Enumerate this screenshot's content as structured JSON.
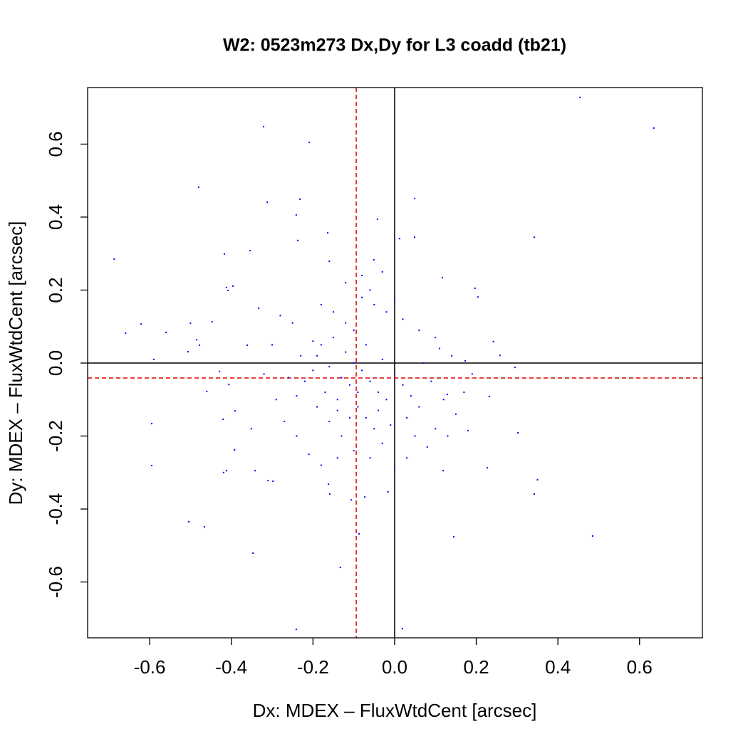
{
  "chart_data": {
    "type": "scatter",
    "title": "W2: 0523m273 Dx,Dy for L3 coadd (tb21)",
    "x_label": "Dx: MDEX – FluxWtdCent [arcsec]",
    "y_label": "Dy: MDEX – FluxWtdCent [arcsec]",
    "xlim": [
      -0.752,
      0.754
    ],
    "ylim": [
      -0.753,
      0.755
    ],
    "xticks": [
      -0.6,
      -0.4,
      -0.2,
      {
        "value": 0,
        "label": "0.0"
      },
      0.2,
      0.4,
      0.6
    ],
    "yticks": [
      -0.6,
      -0.4,
      -0.2,
      {
        "value": 0,
        "label": "0.0"
      },
      0.2,
      0.4,
      0.6
    ],
    "reference_lines": [
      {
        "axis": "x",
        "value": 0,
        "color": "#000000",
        "dashed": false
      },
      {
        "axis": "y",
        "value": 0,
        "color": "#000000",
        "dashed": false
      },
      {
        "axis": "x",
        "value": -0.094,
        "color": "#e00000",
        "dashed": true
      },
      {
        "axis": "y",
        "value": -0.041,
        "color": "#e00000",
        "dashed": true
      }
    ],
    "series": [
      {
        "color": "#0000ff",
        "x": [
          0.454,
          0.635,
          -0.321,
          -0.209,
          -0.48,
          -0.312,
          -0.232,
          0.049,
          -0.241,
          -0.042,
          -0.687,
          -0.354,
          -0.417,
          -0.164,
          -0.237,
          0.012,
          0.049,
          0.342,
          -0.16,
          -0.051,
          -0.412,
          -0.396,
          -0.408,
          0.117,
          0.197,
          0.204,
          -0.621,
          -0.659,
          -0.56,
          -0.5,
          -0.447,
          -0.485,
          -0.478,
          -0.506,
          -0.59,
          -0.361,
          -0.333,
          0.242,
          0.258,
          0.295,
          0.173,
          -0.429,
          -0.406,
          -0.46,
          -0.391,
          -0.42,
          -0.595,
          -0.351,
          -0.392,
          -0.595,
          -0.412,
          -0.419,
          -0.342,
          -0.31,
          -0.298,
          -0.466,
          -0.504,
          -0.347,
          -0.162,
          -0.159,
          -0.106,
          -0.073,
          -0.016,
          -0.087,
          0.145,
          0.342,
          0.35,
          0.485,
          0.227,
          0.302,
          0.18,
          0.119,
          -0.133,
          -0.241,
          0.019,
          0.232,
          0.129,
          -0.18,
          -0.15,
          -0.12,
          -0.1,
          -0.08,
          -0.06,
          -0.04,
          -0.02,
          -0.2,
          -0.22,
          -0.17,
          -0.14,
          -0.11,
          -0.09,
          -0.07,
          -0.05,
          -0.13,
          -0.16,
          -0.19,
          -0.24,
          -0.26,
          -0.23,
          -0.2,
          -0.03,
          0.0,
          0.02,
          0.04,
          0.06,
          0.03,
          0.05,
          0.08,
          0.1,
          0.12,
          0.09,
          0.07,
          0.1,
          0.06,
          0.02,
          -0.02,
          -0.05,
          -0.08,
          -0.12,
          -0.15,
          -0.18,
          -0.25,
          -0.28,
          -0.3,
          -0.32,
          -0.29,
          -0.27,
          -0.24,
          -0.21,
          -0.18,
          -0.14,
          -0.1,
          -0.06,
          -0.03,
          0.0,
          0.03,
          0.13,
          0.15,
          0.17,
          0.19,
          0.14,
          0.11,
          -0.04,
          -0.09,
          -0.11,
          -0.13,
          -0.16,
          -0.07,
          -0.1,
          -0.14,
          -0.01,
          -0.19,
          -0.08,
          -0.06,
          -0.12,
          -0.03,
          0.0
        ],
        "y": [
          0.728,
          0.644,
          0.648,
          0.605,
          0.482,
          0.441,
          0.449,
          0.451,
          0.406,
          0.394,
          0.285,
          0.308,
          0.299,
          0.357,
          0.336,
          0.341,
          0.345,
          0.345,
          0.279,
          0.283,
          0.207,
          0.211,
          0.199,
          0.234,
          0.205,
          0.181,
          0.107,
          0.082,
          0.084,
          0.109,
          0.113,
          0.064,
          0.049,
          0.031,
          0.01,
          0.049,
          0.15,
          0.059,
          0.021,
          -0.012,
          0.006,
          -0.023,
          -0.059,
          -0.078,
          -0.131,
          -0.154,
          -0.166,
          -0.18,
          -0.238,
          -0.281,
          -0.295,
          -0.3,
          -0.295,
          -0.322,
          -0.324,
          -0.449,
          -0.435,
          -0.521,
          -0.332,
          -0.359,
          -0.375,
          -0.367,
          -0.353,
          -0.468,
          -0.476,
          -0.359,
          -0.32,
          -0.474,
          -0.287,
          -0.191,
          -0.185,
          -0.295,
          -0.56,
          -0.73,
          -0.728,
          -0.092,
          -0.086,
          0.05,
          0.07,
          0.03,
          0.0,
          -0.02,
          -0.05,
          -0.08,
          -0.1,
          -0.02,
          -0.05,
          -0.08,
          -0.1,
          -0.06,
          -0.12,
          -0.15,
          -0.18,
          -0.2,
          -0.16,
          -0.12,
          -0.09,
          -0.04,
          0.02,
          0.06,
          0.01,
          -0.03,
          -0.06,
          -0.09,
          -0.12,
          -0.15,
          -0.2,
          -0.23,
          -0.18,
          -0.1,
          -0.05,
          0.0,
          0.07,
          0.09,
          0.12,
          0.14,
          0.16,
          0.18,
          0.11,
          0.14,
          0.16,
          0.11,
          0.13,
          0.05,
          -0.03,
          -0.1,
          -0.16,
          -0.2,
          -0.25,
          -0.28,
          -0.26,
          -0.24,
          -0.26,
          -0.22,
          -0.29,
          -0.26,
          -0.2,
          -0.14,
          -0.08,
          -0.03,
          0.02,
          0.04,
          -0.13,
          -0.08,
          -0.15,
          -0.04,
          -0.01,
          0.05,
          0.09,
          -0.13,
          -0.17,
          0.02,
          0.24,
          0.2,
          0.22,
          0.25,
          0.17
        ]
      }
    ]
  }
}
